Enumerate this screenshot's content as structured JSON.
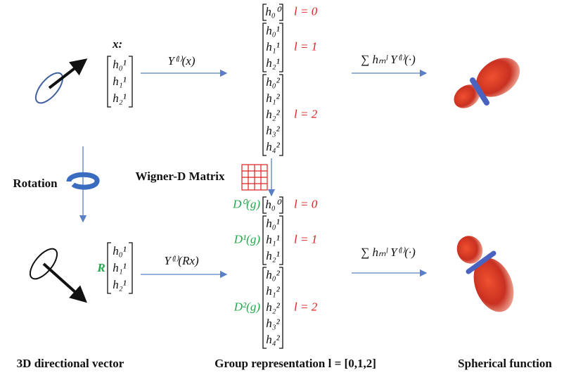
{
  "input": {
    "label": "x:",
    "entries": [
      "h₀¹",
      "h₁¹",
      "h₂¹"
    ],
    "map": "Y⁽ˡ⁾(x)"
  },
  "top_representation": {
    "blocks": [
      {
        "entries": [
          "h₀⁰"
        ],
        "label": "l = 0"
      },
      {
        "entries": [
          "h₀¹",
          "h₁¹",
          "h₂¹"
        ],
        "label": "l = 1"
      },
      {
        "entries": [
          "h₀²",
          "h₁²",
          "h₂²",
          "h₃²",
          "h₄²"
        ],
        "label": "l = 2"
      }
    ]
  },
  "sum_top": "∑ hₘˡ Y⁽ˡ⁾(·)",
  "rotation": "Rotation",
  "wigner": "Wigner-D Matrix",
  "rotated": {
    "operator": "R",
    "entries": [
      "h₀¹",
      "h₁¹",
      "h₂¹"
    ],
    "map": "Y⁽ˡ⁾(Rx)"
  },
  "bottom_representation": {
    "blocks": [
      {
        "operator": "D⁰(g)",
        "entries": [
          "h₀⁰"
        ],
        "label": "l = 0"
      },
      {
        "operator": "D¹(g)",
        "entries": [
          "h₀¹",
          "h₁¹",
          "h₂¹"
        ],
        "label": "l = 1"
      },
      {
        "operator": "D²(g)",
        "entries": [
          "h₀²",
          "h₁²",
          "h₂²",
          "h₃²",
          "h₄²"
        ],
        "label": "l = 2"
      }
    ]
  },
  "sum_bottom": "∑ hₘˡ Y⁽ˡ⁾(·)",
  "captions": [
    "3D directional vector",
    "Group representation l = [0,1,2]",
    "Spherical function"
  ]
}
